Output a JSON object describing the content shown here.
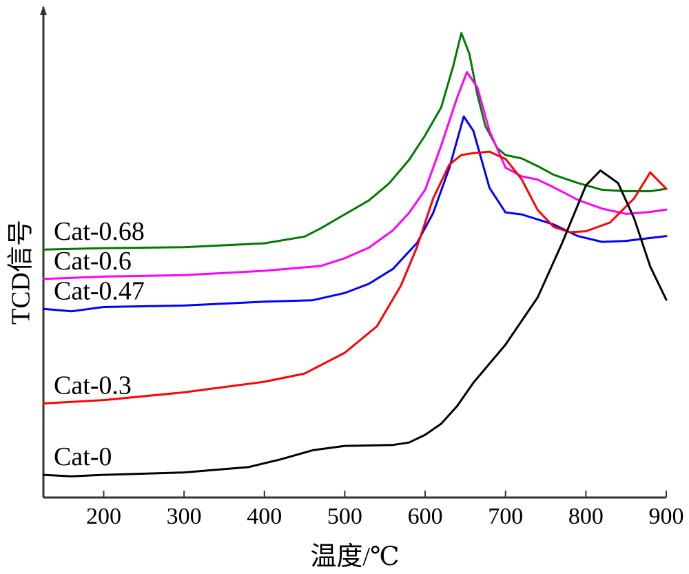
{
  "chart_data": {
    "type": "line",
    "xlabel": "温度/℃",
    "ylabel": "TCD信号",
    "xlim": [
      125,
      900
    ],
    "ylim": [
      0,
      10
    ],
    "x_ticks": [
      200,
      300,
      400,
      500,
      600,
      700,
      800,
      900
    ],
    "y_ticks": [],
    "grid": false,
    "legend": "inline labels at left of each curve",
    "series": [
      {
        "name": "Cat-0.68",
        "color": "#007a00",
        "x": [
          125,
          200,
          300,
          400,
          450,
          470,
          500,
          530,
          555,
          580,
          600,
          620,
          635,
          645,
          655,
          665,
          675,
          690,
          700,
          720,
          740,
          760,
          790,
          820,
          850,
          880,
          900
        ],
        "y": [
          5.14,
          5.17,
          5.19,
          5.27,
          5.41,
          5.58,
          5.87,
          6.16,
          6.51,
          7.0,
          7.51,
          8.09,
          8.95,
          9.63,
          9.2,
          8.35,
          7.7,
          7.24,
          7.1,
          7.03,
          6.87,
          6.69,
          6.52,
          6.38,
          6.35,
          6.35,
          6.4
        ]
      },
      {
        "name": "Cat-0.6",
        "color": "#ff00ff",
        "x": [
          125,
          200,
          300,
          400,
          470,
          500,
          530,
          560,
          580,
          600,
          620,
          640,
          652,
          665,
          680,
          700,
          720,
          740,
          760,
          790,
          820,
          850,
          880,
          900
        ],
        "y": [
          4.53,
          4.58,
          4.61,
          4.7,
          4.8,
          4.96,
          5.18,
          5.54,
          5.9,
          6.38,
          7.3,
          8.3,
          8.82,
          8.5,
          7.6,
          6.84,
          6.66,
          6.59,
          6.43,
          6.17,
          5.99,
          5.88,
          5.92,
          5.97
        ]
      },
      {
        "name": "Cat-0.47",
        "color": "#0000ff",
        "x": [
          125,
          160,
          200,
          300,
          400,
          460,
          500,
          530,
          560,
          590,
          610,
          630,
          648,
          660,
          680,
          700,
          720,
          760,
          790,
          820,
          850,
          880,
          900
        ],
        "y": [
          3.91,
          3.86,
          3.95,
          3.98,
          4.06,
          4.09,
          4.24,
          4.43,
          4.74,
          5.28,
          5.9,
          6.83,
          7.9,
          7.6,
          6.42,
          5.91,
          5.87,
          5.66,
          5.42,
          5.3,
          5.32,
          5.38,
          5.42
        ]
      },
      {
        "name": "Cat-0.3",
        "color": "#ff0000",
        "x": [
          125,
          200,
          300,
          400,
          450,
          500,
          540,
          570,
          590,
          610,
          630,
          645,
          660,
          680,
          700,
          720,
          740,
          760,
          780,
          800,
          830,
          860,
          880,
          900
        ],
        "y": [
          1.95,
          2.02,
          2.18,
          2.4,
          2.57,
          3.0,
          3.55,
          4.4,
          5.2,
          6.2,
          6.9,
          7.1,
          7.14,
          7.17,
          7.02,
          6.6,
          5.96,
          5.61,
          5.5,
          5.52,
          5.7,
          6.2,
          6.74,
          6.4
        ]
      },
      {
        "name": "Cat-0",
        "color": "#000000",
        "x": [
          125,
          160,
          200,
          300,
          380,
          420,
          460,
          500,
          560,
          580,
          600,
          620,
          640,
          660,
          700,
          740,
          770,
          800,
          818,
          840,
          860,
          880,
          900
        ],
        "y": [
          0.47,
          0.44,
          0.47,
          0.52,
          0.63,
          0.79,
          0.98,
          1.07,
          1.09,
          1.14,
          1.3,
          1.53,
          1.9,
          2.38,
          3.17,
          4.15,
          5.26,
          6.47,
          6.78,
          6.52,
          5.79,
          4.79,
          4.1
        ]
      }
    ]
  }
}
